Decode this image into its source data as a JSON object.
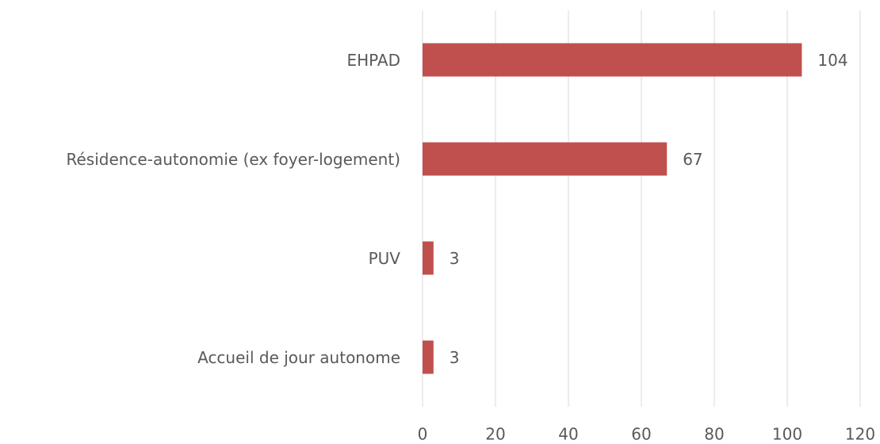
{
  "chart_data": {
    "type": "bar",
    "orientation": "horizontal",
    "categories": [
      "EHPAD",
      "Résidence-autonomie (ex foyer-logement)",
      "PUV",
      "Accueil de jour autonome"
    ],
    "values": [
      104,
      67,
      3,
      3
    ],
    "color": "#c0504d",
    "xlim": [
      0,
      120
    ],
    "xticks": [
      0,
      20,
      40,
      60,
      80,
      100,
      120
    ],
    "grid": true
  }
}
